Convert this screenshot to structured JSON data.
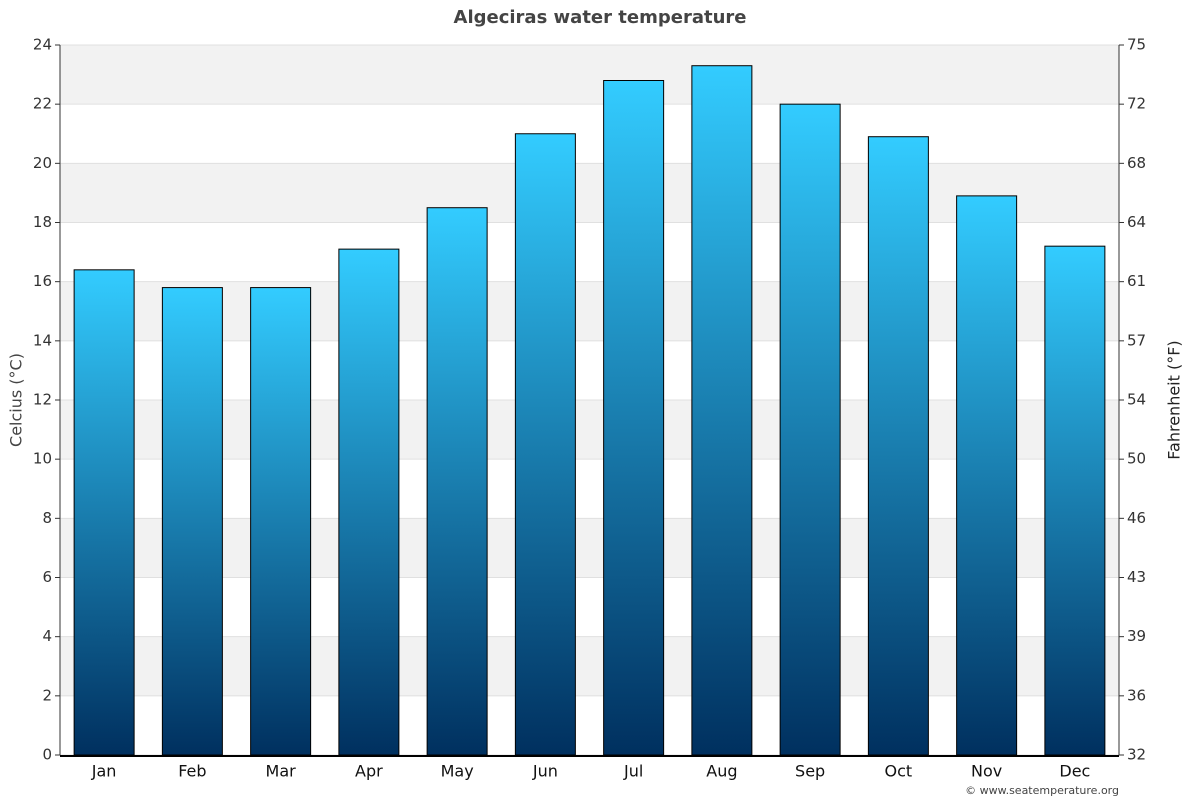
{
  "chart_data": {
    "type": "bar",
    "title": "Algeciras water temperature",
    "categories": [
      "Jan",
      "Feb",
      "Mar",
      "Apr",
      "May",
      "Jun",
      "Jul",
      "Aug",
      "Sep",
      "Oct",
      "Nov",
      "Dec"
    ],
    "values": [
      16.4,
      15.8,
      15.8,
      17.1,
      18.5,
      21.0,
      22.8,
      23.3,
      22.0,
      20.9,
      18.9,
      17.2
    ],
    "gradient": [
      "#33ccff",
      "#00305f"
    ],
    "ylabel": "Celcius (°C)",
    "y2label": "Fahrenheit (°F)",
    "ylim": [
      0,
      24
    ],
    "yticks": [
      0,
      2,
      4,
      6,
      8,
      10,
      12,
      14,
      16,
      18,
      20,
      22,
      24
    ],
    "y2lim": [
      32,
      75.2
    ],
    "y2ticks": [
      32,
      {
        "value": 35.6,
        "label": "36"
      },
      {
        "value": 39.2,
        "label": "39"
      },
      {
        "value": 42.8,
        "label": "43"
      },
      {
        "value": 46.4,
        "label": "46"
      },
      50,
      {
        "value": 53.6,
        "label": "54"
      },
      {
        "value": 57.2,
        "label": "57"
      },
      {
        "value": 60.8,
        "label": "61"
      },
      {
        "value": 64.4,
        "label": "64"
      },
      68,
      {
        "value": 71.6,
        "label": "72"
      },
      {
        "value": 75.2,
        "label": "75"
      }
    ],
    "grid": true,
    "band_color": "#f2f2f2",
    "credit": "© www.seatemperature.org"
  }
}
